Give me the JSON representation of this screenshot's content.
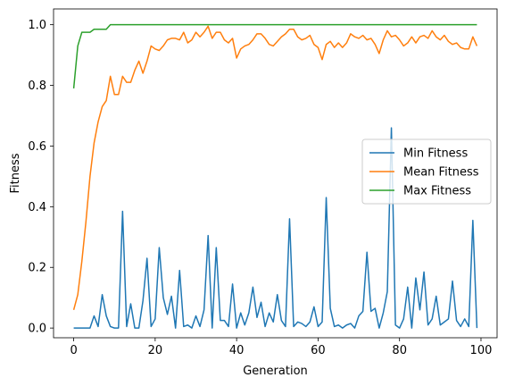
{
  "chart_data": {
    "type": "line",
    "title": "",
    "xlabel": "Generation",
    "ylabel": "Fitness",
    "xlim": [
      -4.95,
      103.95
    ],
    "ylim": [
      -0.032,
      1.052
    ],
    "xticks": [
      0,
      20,
      40,
      60,
      80,
      100
    ],
    "yticks": [
      0.0,
      0.2,
      0.4,
      0.6,
      0.8,
      1.0
    ],
    "xtick_labels": [
      "0",
      "20",
      "40",
      "60",
      "80",
      "100"
    ],
    "ytick_labels": [
      "0.0",
      "0.2",
      "0.4",
      "0.6",
      "0.8",
      "1.0"
    ],
    "grid": false,
    "legend_position": "center-right",
    "x": [
      0,
      1,
      2,
      3,
      4,
      5,
      6,
      7,
      8,
      9,
      10,
      11,
      12,
      13,
      14,
      15,
      16,
      17,
      18,
      19,
      20,
      21,
      22,
      23,
      24,
      25,
      26,
      27,
      28,
      29,
      30,
      31,
      32,
      33,
      34,
      35,
      36,
      37,
      38,
      39,
      40,
      41,
      42,
      43,
      44,
      45,
      46,
      47,
      48,
      49,
      50,
      51,
      52,
      53,
      54,
      55,
      56,
      57,
      58,
      59,
      60,
      61,
      62,
      63,
      64,
      65,
      66,
      67,
      68,
      69,
      70,
      71,
      72,
      73,
      74,
      75,
      76,
      77,
      78,
      79,
      80,
      81,
      82,
      83,
      84,
      85,
      86,
      87,
      88,
      89,
      90,
      91,
      92,
      93,
      94,
      95,
      96,
      97,
      98,
      99
    ],
    "series": [
      {
        "name": "Min Fitness",
        "color": "#1f77b4",
        "values": [
          0.0,
          0.0,
          0.0,
          0.0,
          0.0,
          0.04,
          0.005,
          0.11,
          0.04,
          0.005,
          0.0,
          0.0,
          0.385,
          0.005,
          0.08,
          0.0,
          0.0,
          0.09,
          0.23,
          0.005,
          0.03,
          0.265,
          0.1,
          0.045,
          0.105,
          0.0,
          0.19,
          0.005,
          0.01,
          0.0,
          0.04,
          0.005,
          0.06,
          0.305,
          0.0,
          0.265,
          0.025,
          0.025,
          0.005,
          0.145,
          0.0,
          0.05,
          0.01,
          0.05,
          0.135,
          0.035,
          0.085,
          0.005,
          0.05,
          0.02,
          0.11,
          0.025,
          0.005,
          0.36,
          0.005,
          0.02,
          0.015,
          0.005,
          0.02,
          0.07,
          0.005,
          0.02,
          0.43,
          0.065,
          0.005,
          0.01,
          0.0,
          0.01,
          0.015,
          0.0,
          0.04,
          0.055,
          0.25,
          0.055,
          0.065,
          0.0,
          0.05,
          0.12,
          0.66,
          0.01,
          0.0,
          0.03,
          0.135,
          0.0,
          0.165,
          0.06,
          0.185,
          0.01,
          0.03,
          0.105,
          0.01,
          0.02,
          0.03,
          0.155,
          0.025,
          0.005,
          0.03,
          0.005,
          0.355,
          0.0
        ]
      },
      {
        "name": "Mean Fitness",
        "color": "#ff7f0e",
        "values": [
          0.06,
          0.11,
          0.22,
          0.35,
          0.5,
          0.61,
          0.68,
          0.73,
          0.75,
          0.83,
          0.77,
          0.77,
          0.83,
          0.81,
          0.81,
          0.85,
          0.88,
          0.84,
          0.88,
          0.93,
          0.92,
          0.915,
          0.93,
          0.95,
          0.955,
          0.955,
          0.95,
          0.975,
          0.94,
          0.95,
          0.975,
          0.96,
          0.975,
          0.995,
          0.955,
          0.975,
          0.975,
          0.95,
          0.94,
          0.955,
          0.89,
          0.92,
          0.93,
          0.935,
          0.95,
          0.97,
          0.97,
          0.955,
          0.935,
          0.93,
          0.945,
          0.96,
          0.97,
          0.985,
          0.985,
          0.96,
          0.95,
          0.955,
          0.965,
          0.935,
          0.925,
          0.885,
          0.935,
          0.945,
          0.925,
          0.94,
          0.925,
          0.94,
          0.97,
          0.96,
          0.955,
          0.965,
          0.95,
          0.955,
          0.935,
          0.905,
          0.95,
          0.98,
          0.96,
          0.965,
          0.95,
          0.93,
          0.94,
          0.96,
          0.94,
          0.96,
          0.965,
          0.955,
          0.98,
          0.96,
          0.95,
          0.965,
          0.945,
          0.935,
          0.94,
          0.925,
          0.92,
          0.92,
          0.96,
          0.93
        ]
      },
      {
        "name": "Max Fitness",
        "color": "#2ca02c",
        "values": [
          0.79,
          0.93,
          0.975,
          0.975,
          0.975,
          0.985,
          0.985,
          0.985,
          0.985,
          1.0,
          1.0,
          1.0,
          1.0,
          1.0,
          1.0,
          1.0,
          1.0,
          1.0,
          1.0,
          1.0,
          1.0,
          1.0,
          1.0,
          1.0,
          1.0,
          1.0,
          1.0,
          1.0,
          1.0,
          1.0,
          1.0,
          1.0,
          1.0,
          1.0,
          1.0,
          1.0,
          1.0,
          1.0,
          1.0,
          1.0,
          1.0,
          1.0,
          1.0,
          1.0,
          1.0,
          1.0,
          1.0,
          1.0,
          1.0,
          1.0,
          1.0,
          1.0,
          1.0,
          1.0,
          1.0,
          1.0,
          1.0,
          1.0,
          1.0,
          1.0,
          1.0,
          1.0,
          1.0,
          1.0,
          1.0,
          1.0,
          1.0,
          1.0,
          1.0,
          1.0,
          1.0,
          1.0,
          1.0,
          1.0,
          1.0,
          1.0,
          1.0,
          1.0,
          1.0,
          1.0,
          1.0,
          1.0,
          1.0,
          1.0,
          1.0,
          1.0,
          1.0,
          1.0,
          1.0,
          1.0,
          1.0,
          1.0,
          1.0,
          1.0,
          1.0,
          1.0,
          1.0,
          1.0,
          1.0,
          1.0
        ]
      }
    ]
  }
}
